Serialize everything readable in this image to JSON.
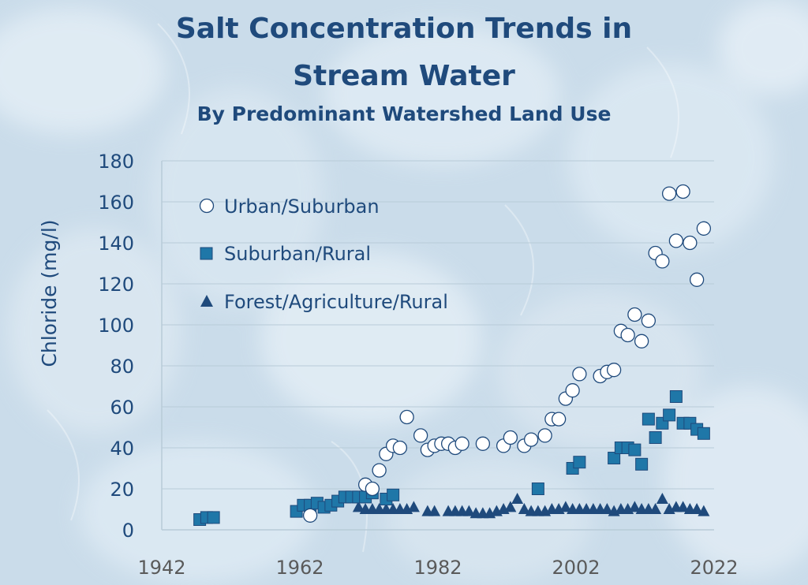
{
  "colors": {
    "title": "#1f4a7c",
    "axis_text": "#5a5a5a",
    "square_fill": "#1f77a8",
    "triangle_fill": "#1f4a7c",
    "circle_fill": "#ffffff",
    "marker_stroke": "#1f4a7c",
    "grid": "#b8cbd8"
  },
  "header": {
    "title_line1": "Salt Concentration Trends in",
    "title_line2": "Stream Water",
    "subtitle": "By Predominant Watershed Land Use"
  },
  "chart_data": {
    "type": "scatter",
    "title": "Salt Concentration Trends in Stream Water",
    "subtitle": "By Predominant Watershed Land Use",
    "xlabel": "",
    "ylabel": "Chloride (mg/l)",
    "xlim": [
      1942,
      2022
    ],
    "ylim": [
      0,
      180
    ],
    "xticks": [
      1942,
      1962,
      1982,
      2002,
      2022
    ],
    "yticks": [
      0,
      20,
      40,
      60,
      80,
      100,
      120,
      140,
      160,
      180
    ],
    "grid": true,
    "legend_position": "top-left",
    "series": [
      {
        "name": "Urban/Suburban",
        "marker": "circle",
        "points": [
          [
            1963.5,
            7
          ],
          [
            1971.5,
            22
          ],
          [
            1972.5,
            20
          ],
          [
            1973.5,
            29
          ],
          [
            1974.5,
            37
          ],
          [
            1975.5,
            41
          ],
          [
            1976.5,
            40
          ],
          [
            1977.5,
            55
          ],
          [
            1979.5,
            46
          ],
          [
            1980.5,
            39
          ],
          [
            1981.5,
            41
          ],
          [
            1982.5,
            42
          ],
          [
            1983.5,
            42
          ],
          [
            1984.5,
            40
          ],
          [
            1985.5,
            42
          ],
          [
            1988.5,
            42
          ],
          [
            1991.5,
            41
          ],
          [
            1992.5,
            45
          ],
          [
            1994.5,
            41
          ],
          [
            1995.5,
            44
          ],
          [
            1997.5,
            46
          ],
          [
            1998.5,
            54
          ],
          [
            1999.5,
            54
          ],
          [
            2000.5,
            64
          ],
          [
            2001.5,
            68
          ],
          [
            2002.5,
            76
          ],
          [
            2005.5,
            75
          ],
          [
            2006.5,
            77
          ],
          [
            2007.5,
            78
          ],
          [
            2008.5,
            97
          ],
          [
            2009.5,
            95
          ],
          [
            2010.5,
            105
          ],
          [
            2011.5,
            92
          ],
          [
            2012.5,
            102
          ],
          [
            2013.5,
            135
          ],
          [
            2014.5,
            131
          ],
          [
            2015.5,
            164
          ],
          [
            2016.5,
            141
          ],
          [
            2017.5,
            165
          ],
          [
            2018.5,
            140
          ],
          [
            2019.5,
            122
          ],
          [
            2020.5,
            147
          ]
        ]
      },
      {
        "name": "Suburban/Rural",
        "marker": "square",
        "points": [
          [
            1947.5,
            5
          ],
          [
            1948.5,
            6
          ],
          [
            1949.5,
            6
          ],
          [
            1961.5,
            9
          ],
          [
            1962.5,
            12
          ],
          [
            1963.5,
            12
          ],
          [
            1964.5,
            13
          ],
          [
            1965.5,
            11
          ],
          [
            1966.5,
            12
          ],
          [
            1967.5,
            14
          ],
          [
            1968.5,
            16
          ],
          [
            1969.5,
            16
          ],
          [
            1970.5,
            16
          ],
          [
            1971.5,
            16
          ],
          [
            1972.5,
            18
          ],
          [
            1974.5,
            15
          ],
          [
            1975.5,
            17
          ],
          [
            1996.5,
            20
          ],
          [
            2001.5,
            30
          ],
          [
            2002.5,
            33
          ],
          [
            2007.5,
            35
          ],
          [
            2008.5,
            40
          ],
          [
            2009.5,
            40
          ],
          [
            2010.5,
            39
          ],
          [
            2011.5,
            32
          ],
          [
            2012.5,
            54
          ],
          [
            2013.5,
            45
          ],
          [
            2014.5,
            52
          ],
          [
            2015.5,
            56
          ],
          [
            2016.5,
            65
          ],
          [
            2017.5,
            52
          ],
          [
            2018.5,
            52
          ],
          [
            2019.5,
            49
          ],
          [
            2020.5,
            47
          ]
        ]
      },
      {
        "name": "Forest/Agriculture/Rural",
        "marker": "triangle",
        "points": [
          [
            1970.5,
            11
          ],
          [
            1971.5,
            10
          ],
          [
            1972.5,
            10
          ],
          [
            1973.5,
            10
          ],
          [
            1974.5,
            10
          ],
          [
            1975.5,
            10
          ],
          [
            1976.5,
            10
          ],
          [
            1977.5,
            10
          ],
          [
            1978.5,
            11
          ],
          [
            1980.5,
            9
          ],
          [
            1981.5,
            9
          ],
          [
            1983.5,
            9
          ],
          [
            1984.5,
            9
          ],
          [
            1985.5,
            9
          ],
          [
            1986.5,
            9
          ],
          [
            1987.5,
            8
          ],
          [
            1988.5,
            8
          ],
          [
            1989.5,
            8
          ],
          [
            1990.5,
            9
          ],
          [
            1991.5,
            10
          ],
          [
            1992.5,
            11
          ],
          [
            1993.5,
            15
          ],
          [
            1994.5,
            10
          ],
          [
            1995.5,
            9
          ],
          [
            1996.5,
            9
          ],
          [
            1997.5,
            9
          ],
          [
            1998.5,
            10
          ],
          [
            1999.5,
            10
          ],
          [
            2000.5,
            11
          ],
          [
            2001.5,
            10
          ],
          [
            2002.5,
            10
          ],
          [
            2003.5,
            10
          ],
          [
            2004.5,
            10
          ],
          [
            2005.5,
            10
          ],
          [
            2006.5,
            10
          ],
          [
            2007.5,
            9
          ],
          [
            2008.5,
            10
          ],
          [
            2009.5,
            10
          ],
          [
            2010.5,
            11
          ],
          [
            2011.5,
            10
          ],
          [
            2012.5,
            10
          ],
          [
            2013.5,
            10
          ],
          [
            2014.5,
            15
          ],
          [
            2015.5,
            10
          ],
          [
            2016.5,
            11
          ],
          [
            2017.5,
            11
          ],
          [
            2018.5,
            10
          ],
          [
            2019.5,
            10
          ],
          [
            2020.5,
            9
          ]
        ]
      }
    ]
  }
}
